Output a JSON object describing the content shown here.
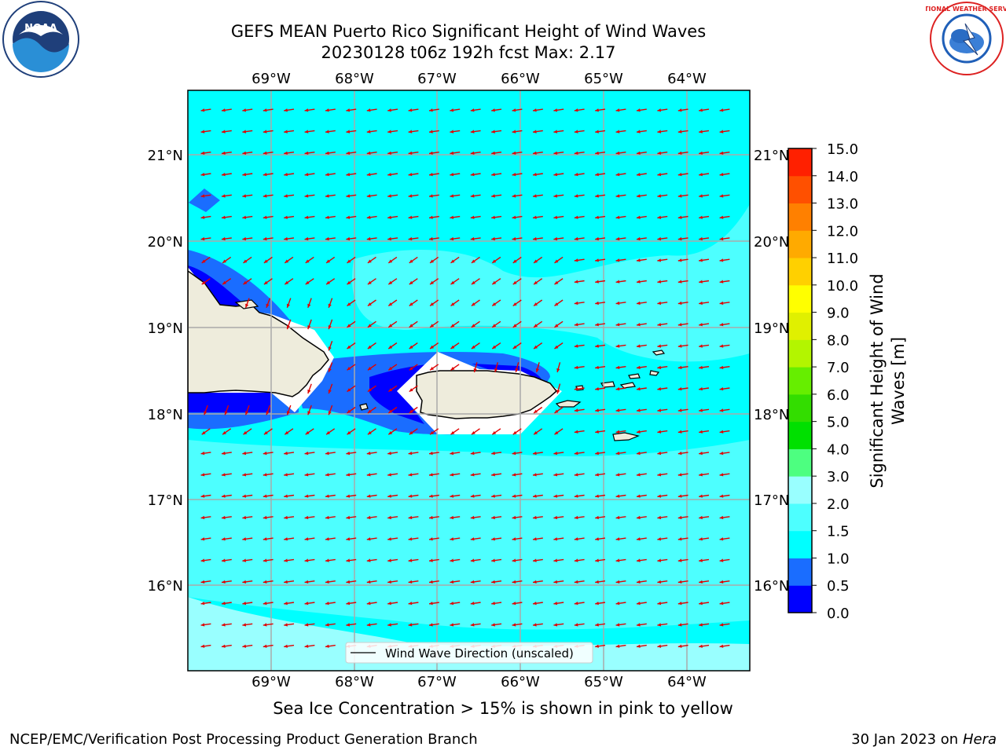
{
  "title_line1": "GEFS MEAN Puerto Rico Significant Height of Wind Waves",
  "title_line2": "20230128 t06z 192h fcst   Max: 2.17",
  "map": {
    "lon_ticks": [
      "69°W",
      "68°W",
      "67°W",
      "66°W",
      "65°W",
      "64°W"
    ],
    "lat_ticks": [
      "21°N",
      "20°N",
      "19°N",
      "18°N",
      "17°N",
      "16°N"
    ],
    "legend_label": "Wind Wave Direction (unscaled)",
    "arrow_color": "#e00000",
    "land_color": "#eeecdc",
    "grid_color": "#aaaaaa"
  },
  "colorbar": {
    "label_line1": "Significant Height of Wind",
    "label_line2": "Waves [m]",
    "levels": [
      "0.0",
      "0.5",
      "1.0",
      "1.5",
      "2.0",
      "3.0",
      "4.0",
      "5.0",
      "6.0",
      "7.0",
      "8.0",
      "9.0",
      "10.0",
      "11.0",
      "12.0",
      "13.0",
      "14.0",
      "15.0"
    ],
    "colors": [
      "#0000ff",
      "#1a6dff",
      "#00ffff",
      "#4dffff",
      "#99ffff",
      "#4dff80",
      "#00e000",
      "#33dd00",
      "#66ee00",
      "#b3f500",
      "#e0f000",
      "#ffff00",
      "#ffd000",
      "#ffaa00",
      "#ff8000",
      "#ff5000",
      "#ff2000"
    ]
  },
  "note": "Sea Ice Concentration > 15% is shown in pink to yellow",
  "footer_left": "NCEP/EMC/Verification Post Processing Product Generation Branch",
  "footer_right_date": "30 Jan 2023 on",
  "footer_right_machine": "Hera",
  "logos": {
    "left": "NOAA",
    "right": "NATIONAL WEATHER SERVICE"
  }
}
